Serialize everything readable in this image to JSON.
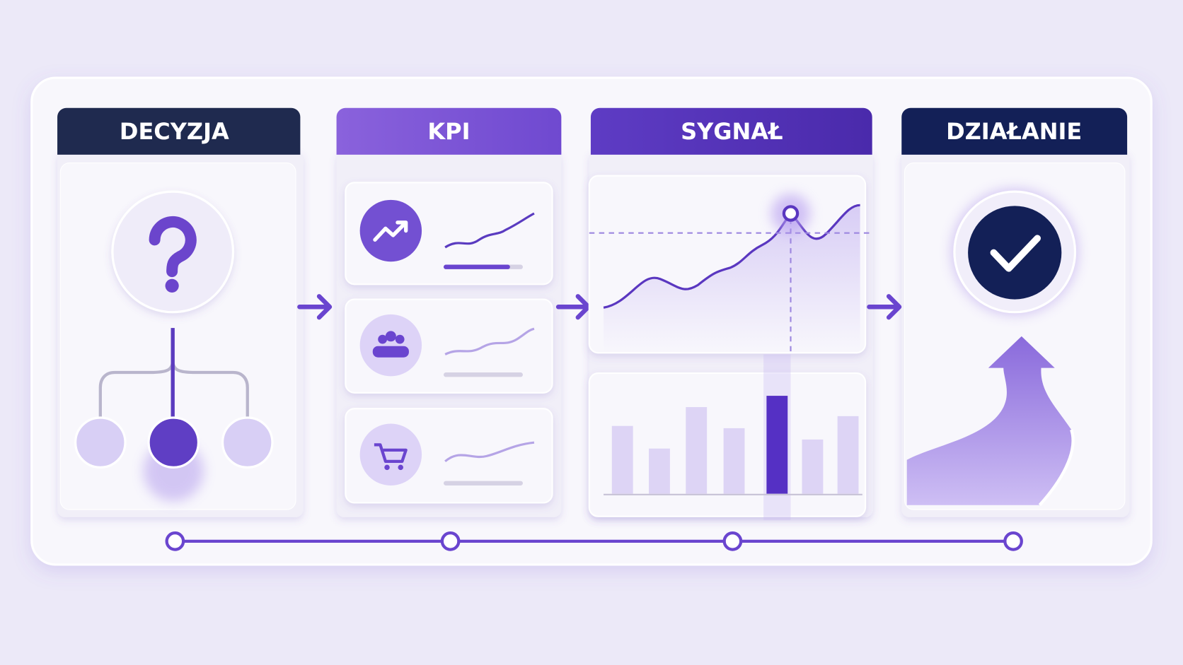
{
  "steps": [
    {
      "title": "DECYZJA"
    },
    {
      "title": "KPI"
    },
    {
      "title": "SYGNAŁ"
    },
    {
      "title": "DZIAŁANIE"
    }
  ]
}
